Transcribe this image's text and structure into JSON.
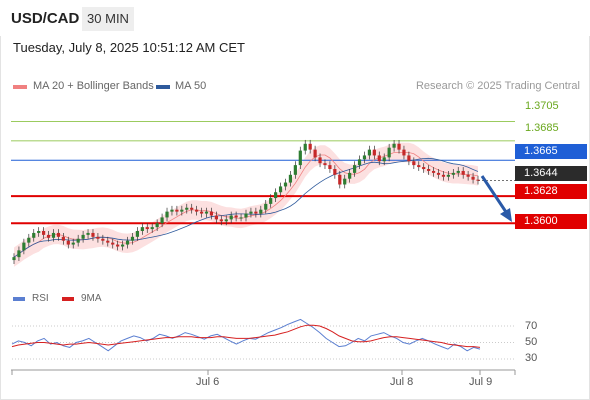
{
  "header": {
    "symbol": "USD/CAD",
    "timeframe": "30 MIN"
  },
  "datetime": "Tuesday, July 8, 2025 10:51:12 AM CET",
  "legend": {
    "ma20": {
      "label": "MA 20 + Bollinger Bands",
      "color": "#f08080"
    },
    "ma50": {
      "label": "MA 50",
      "color": "#2e5a9c"
    }
  },
  "source": "Research © 2025 Trading Central",
  "colors": {
    "resistance": "#7aba28",
    "pivot": "#1f5fd6",
    "support": "#e00000",
    "last": "#2b2b2b",
    "candle_up": "#2e7d32",
    "candle_down": "#c62828",
    "rsi": "#5b7fd1",
    "rsi_ma": "#d62020"
  },
  "levels": [
    {
      "value": "1.3705",
      "kind": "resistance"
    },
    {
      "value": "1.3685",
      "kind": "resistance"
    },
    {
      "value": "1.3665",
      "kind": "pivot"
    },
    {
      "value": "1.3644",
      "kind": "last"
    },
    {
      "value": "1.3628",
      "kind": "support"
    },
    {
      "value": "1.3600",
      "kind": "support"
    }
  ],
  "rsi_panel": {
    "legend": [
      {
        "label": "RSI",
        "color": "#5b7fd1"
      },
      {
        "label": "9MA",
        "color": "#d62020"
      }
    ],
    "ticks": [
      "70",
      "50",
      "30"
    ]
  },
  "xaxis": [
    "Jul 6",
    "Jul 8",
    "Jul 9"
  ],
  "chart_data": {
    "type": "candlestick",
    "title": "USD/CAD",
    "timeframe": "30 MIN",
    "x": [
      "Jul 6",
      "Jul 8",
      "Jul 9"
    ],
    "ylim": [
      1.356,
      1.372
    ],
    "closes": [
      1.3565,
      1.3572,
      1.358,
      1.3585,
      1.359,
      1.3592,
      1.3588,
      1.3585,
      1.359,
      1.3586,
      1.3582,
      1.3578,
      1.358,
      1.3584,
      1.3588,
      1.359,
      1.3586,
      1.3584,
      1.3582,
      1.358,
      1.3578,
      1.3576,
      1.3578,
      1.3582,
      1.3586,
      1.3592,
      1.3596,
      1.3594,
      1.3596,
      1.36,
      1.3606,
      1.3612,
      1.3614,
      1.3612,
      1.3614,
      1.3616,
      1.3614,
      1.3612,
      1.361,
      1.3612,
      1.3608,
      1.3604,
      1.3602,
      1.3604,
      1.3608,
      1.3606,
      1.3606,
      1.361,
      1.3612,
      1.361,
      1.3614,
      1.362,
      1.3626,
      1.3632,
      1.3638,
      1.3642,
      1.365,
      1.366,
      1.3675,
      1.3682,
      1.3676,
      1.3668,
      1.3662,
      1.366,
      1.3656,
      1.365,
      1.364,
      1.3646,
      1.3652,
      1.366,
      1.3666,
      1.367,
      1.3676,
      1.367,
      1.3664,
      1.3668,
      1.3678,
      1.3682,
      1.3676,
      1.367,
      1.3664,
      1.366,
      1.3658,
      1.3656,
      1.3654,
      1.3652,
      1.365,
      1.3648,
      1.365,
      1.3652,
      1.3654,
      1.365,
      1.3648,
      1.3645,
      1.3644
    ],
    "indicators": {
      "ma50": "from ~1.3580 rising to ~1.3657",
      "bollinger_ma20": "band follows price, roughly ±0.0010 around MA20"
    },
    "rsi": {
      "ylim": [
        20,
        80
      ],
      "values": [
        48,
        52,
        50,
        46,
        52,
        55,
        48,
        50,
        46,
        44,
        50,
        52,
        55,
        50,
        45,
        40,
        46,
        52,
        55,
        58,
        56,
        52,
        55,
        60,
        58,
        55,
        58,
        62,
        60,
        57,
        54,
        58,
        60,
        56,
        52,
        48,
        52,
        55,
        54,
        58,
        62,
        65,
        68,
        72,
        75,
        78,
        73,
        68,
        62,
        55,
        50,
        45,
        46,
        50,
        55,
        52,
        58,
        60,
        62,
        58,
        55,
        50,
        48,
        52,
        55,
        52,
        48,
        45,
        42,
        48,
        45,
        40,
        44,
        42
      ],
      "ma9": [
        45,
        47,
        48,
        49,
        50,
        50,
        49,
        48,
        47,
        48,
        48,
        49,
        50,
        49,
        48,
        47,
        48,
        49,
        50,
        51,
        52,
        53,
        54,
        55,
        56,
        56,
        57,
        57,
        57,
        56,
        56,
        56,
        57,
        57,
        56,
        55,
        55,
        55,
        56,
        57,
        58,
        59,
        61,
        63,
        66,
        69,
        71,
        71,
        70,
        67,
        63,
        58,
        55,
        52,
        51,
        51,
        52,
        54,
        56,
        57,
        57,
        56,
        55,
        54,
        53,
        52,
        51,
        50,
        48,
        47,
        46,
        45,
        45,
        44
      ]
    }
  }
}
